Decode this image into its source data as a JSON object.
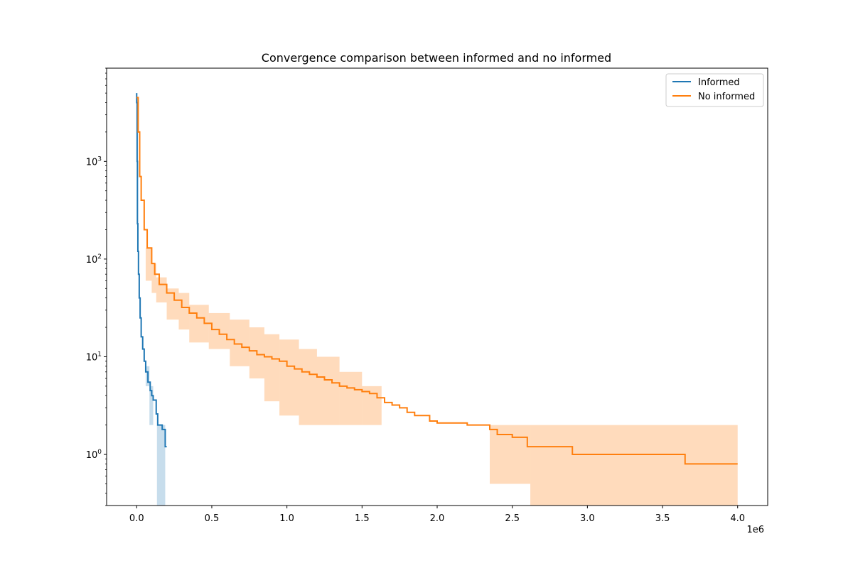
{
  "chart_data": {
    "type": "line",
    "title": "Convergence comparison between informed and no informed",
    "xlabel": "",
    "ylabel": "",
    "x_offset_label": "1e6",
    "xlim": [
      -0.2,
      4.2
    ],
    "ylim": [
      0.3,
      9000
    ],
    "yscale": "log",
    "grid": false,
    "legend_position": "top-right",
    "x_ticks": [
      {
        "value": 0.0,
        "label": "0.0"
      },
      {
        "value": 0.5,
        "label": "0.5"
      },
      {
        "value": 1.0,
        "label": "1.0"
      },
      {
        "value": 1.5,
        "label": "1.5"
      },
      {
        "value": 2.0,
        "label": "2.0"
      },
      {
        "value": 2.5,
        "label": "2.5"
      },
      {
        "value": 3.0,
        "label": "3.0"
      },
      {
        "value": 3.5,
        "label": "3.5"
      },
      {
        "value": 4.0,
        "label": "4.0"
      }
    ],
    "y_ticks": [
      {
        "value": 1,
        "base": "10",
        "exp": "0"
      },
      {
        "value": 10,
        "base": "10",
        "exp": "1"
      },
      {
        "value": 100,
        "base": "10",
        "exp": "2"
      },
      {
        "value": 1000,
        "base": "10",
        "exp": "3"
      }
    ],
    "series": [
      {
        "name": "Informed",
        "color": "#1f77b4",
        "band_color": "#1f77b4",
        "band_opacity": 0.25,
        "x": [
          0.0,
          0.0,
          0.003,
          0.005,
          0.008,
          0.012,
          0.017,
          0.023,
          0.03,
          0.04,
          0.05,
          0.06,
          0.075,
          0.09,
          0.1,
          0.11,
          0.12,
          0.13,
          0.14,
          0.16,
          0.17,
          0.18,
          0.19,
          0.2
        ],
        "y": [
          5000,
          4000,
          1000,
          230,
          120,
          70,
          40,
          25,
          16,
          12,
          9,
          7,
          5.5,
          4.5,
          4,
          3.6,
          3.6,
          2.6,
          2.0,
          2.0,
          1.8,
          1.8,
          1.2,
          1.2
        ],
        "band": [
          {
            "x0": 0.06,
            "x1": 0.085,
            "lo": 5.0,
            "hi": 8.0
          },
          {
            "x0": 0.085,
            "x1": 0.11,
            "lo": 2.0,
            "hi": 5.0
          },
          {
            "x0": 0.135,
            "x1": 0.19,
            "lo": 0.3,
            "hi": 2.0
          }
        ]
      },
      {
        "name": "No informed",
        "color": "#ff7f0e",
        "band_color": "#ff7f0e",
        "band_opacity": 0.28,
        "x": [
          0.0,
          0.01,
          0.02,
          0.03,
          0.05,
          0.07,
          0.1,
          0.12,
          0.15,
          0.2,
          0.25,
          0.3,
          0.35,
          0.4,
          0.45,
          0.5,
          0.55,
          0.6,
          0.65,
          0.7,
          0.75,
          0.8,
          0.85,
          0.9,
          0.95,
          1.0,
          1.05,
          1.1,
          1.15,
          1.2,
          1.25,
          1.3,
          1.35,
          1.4,
          1.45,
          1.5,
          1.55,
          1.6,
          1.65,
          1.7,
          1.75,
          1.8,
          1.85,
          1.9,
          1.95,
          2.0,
          2.1,
          2.2,
          2.3,
          2.35,
          2.4,
          2.5,
          2.6,
          2.7,
          2.8,
          2.9,
          3.0,
          3.2,
          3.4,
          3.6,
          3.65,
          3.8,
          4.0
        ],
        "y": [
          4500,
          2000,
          700,
          400,
          200,
          130,
          90,
          70,
          55,
          45,
          38,
          32,
          28,
          25,
          22,
          19,
          17,
          15,
          13.5,
          12.5,
          11.5,
          10.5,
          10,
          9.5,
          9,
          8,
          7.5,
          7,
          6.6,
          6.2,
          5.8,
          5.4,
          5.0,
          4.8,
          4.6,
          4.4,
          4.2,
          3.8,
          3.4,
          3.2,
          3.0,
          2.7,
          2.5,
          2.5,
          2.2,
          2.1,
          2.1,
          2.0,
          2.0,
          1.8,
          1.6,
          1.5,
          1.2,
          1.2,
          1.2,
          1.0,
          1.0,
          1.0,
          1.0,
          1.0,
          0.8,
          0.8,
          0.8
        ],
        "band": [
          {
            "x0": 0.06,
            "x1": 0.1,
            "lo": 60,
            "hi": 130
          },
          {
            "x0": 0.1,
            "x1": 0.13,
            "lo": 45,
            "hi": 90
          },
          {
            "x0": 0.13,
            "x1": 0.2,
            "lo": 36,
            "hi": 65
          },
          {
            "x0": 0.2,
            "x1": 0.28,
            "lo": 24,
            "hi": 50
          },
          {
            "x0": 0.28,
            "x1": 0.35,
            "lo": 19,
            "hi": 45
          },
          {
            "x0": 0.35,
            "x1": 0.48,
            "lo": 14,
            "hi": 34
          },
          {
            "x0": 0.48,
            "x1": 0.62,
            "lo": 12,
            "hi": 28
          },
          {
            "x0": 0.62,
            "x1": 0.75,
            "lo": 8,
            "hi": 24
          },
          {
            "x0": 0.75,
            "x1": 0.85,
            "lo": 6,
            "hi": 20
          },
          {
            "x0": 0.85,
            "x1": 0.95,
            "lo": 3.5,
            "hi": 17
          },
          {
            "x0": 0.95,
            "x1": 1.08,
            "lo": 2.5,
            "hi": 15
          },
          {
            "x0": 1.08,
            "x1": 1.2,
            "lo": 2.0,
            "hi": 12
          },
          {
            "x0": 1.2,
            "x1": 1.35,
            "lo": 2.0,
            "hi": 10
          },
          {
            "x0": 1.35,
            "x1": 1.5,
            "lo": 2.0,
            "hi": 7
          },
          {
            "x0": 1.5,
            "x1": 1.63,
            "lo": 2.0,
            "hi": 5.0
          },
          {
            "x0": 2.35,
            "x1": 2.62,
            "lo": 0.5,
            "hi": 2.0
          },
          {
            "x0": 2.62,
            "x1": 4.0,
            "lo": 0.3,
            "hi": 2.0
          }
        ]
      }
    ]
  }
}
